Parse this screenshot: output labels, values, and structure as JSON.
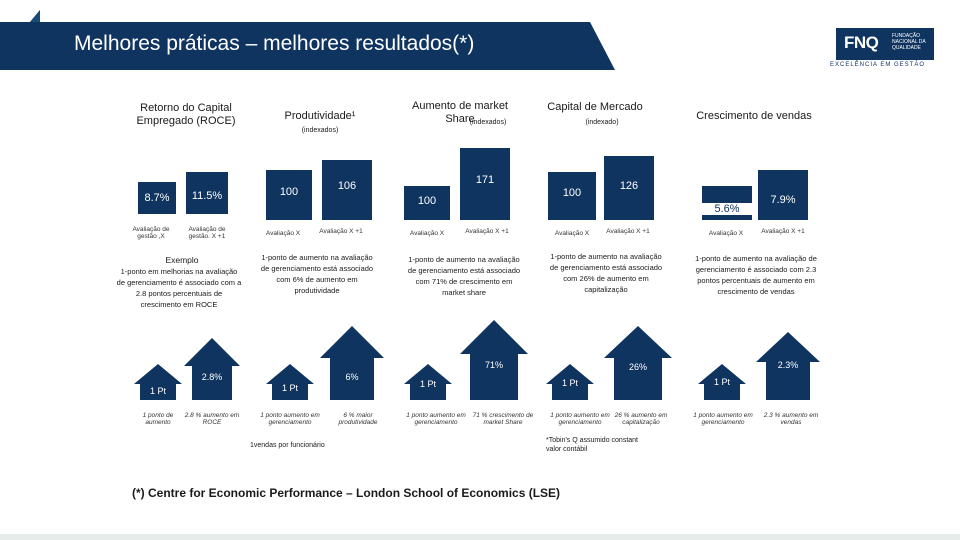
{
  "header": {
    "title": "Melhores práticas – melhores resultados(*)",
    "logo_text": "FNQ",
    "logo_sub": "FUNDAÇÃO NACIONAL DA QUALIDADE",
    "tagline": "EXCELÊNCIA EM GESTÃO"
  },
  "columns": [
    {
      "title": "Retorno do Capital Empregado (ROCE)",
      "subtitle": "",
      "bar1_value": "8.7%",
      "bar2_value": "11.5%",
      "axis1": "Avaliação de gestão ,X",
      "axis2": "Avaliação de gestão. X +1",
      "desc_heading": "Exemplo",
      "desc": "1-ponto em melhorias na avaliação de gerenciamento é associado com a 2.8 pontos percentuais de crescimento em ROCE",
      "arrow_left_label": "1 Pt",
      "arrow_right_label": "2.8%",
      "arrow_left_caption": "1 ponto de aumento",
      "arrow_right_caption": "2.8 % aumento em ROCE",
      "note": ""
    },
    {
      "title": "Produtividade¹",
      "subtitle": "(indexados)",
      "bar1_value": "100",
      "bar2_value": "106",
      "axis1": "Avaliação X",
      "axis2": "Avaliação X +1",
      "desc_heading": "",
      "desc": "1-ponto de aumento na avaliação de gerenciamento está associado com 6% de aumento em produtividade",
      "arrow_left_label": "1 Pt",
      "arrow_right_label": "6%",
      "arrow_left_caption": "1 ponto aumento em gerenciamento",
      "arrow_right_caption": "6 % maior produtividade",
      "note": "1vendas por funcionário"
    },
    {
      "title": "Aumento de market Share",
      "subtitle": "(indexados)",
      "bar1_value": "100",
      "bar2_value": "171",
      "axis1": "Avaliação X",
      "axis2": "Avaliação X +1",
      "desc_heading": "",
      "desc": "1-ponto de aumento na avaliação de gerenciamento está associado com 71% de crescimento em market share",
      "arrow_left_label": "1 Pt",
      "arrow_right_label": "71%",
      "arrow_left_caption": "1 ponto aumento em gerenciamento",
      "arrow_right_caption": "71 % crescimento de market Share",
      "note": ""
    },
    {
      "title": "Capital de Mercado",
      "subtitle": "(indexado)",
      "bar1_value": "100",
      "bar2_value": "126",
      "axis1": "Avaliação X",
      "axis2": "Avaliação X +1",
      "desc_heading": "",
      "desc": "1-ponto de aumento na avaliação de gerenciamento está associado com 26% de aumento em capitalização",
      "arrow_left_label": "1 Pt",
      "arrow_right_label": "26%",
      "arrow_left_caption": "1 ponto aumento em gerenciamento",
      "arrow_right_caption": "26 % aumento em capitalização",
      "note": "*Tobin's Q assumido constant valor contábil"
    },
    {
      "title": "Crescimento de vendas",
      "subtitle": "",
      "bar1_value": "5.6%",
      "bar2_value": "7.9%",
      "axis1": "Avaliação X",
      "axis2": "Avaliação X +1",
      "desc_heading": "",
      "desc": "1-ponto de aumento na avaliação de gerenciamento é associado com 2.3 pontos percentuais de aumento em crescimento de vendas",
      "arrow_left_label": "1 Pt",
      "arrow_right_label": "2.3%",
      "arrow_left_caption": "1 ponto aumento em gerenciamento",
      "arrow_right_caption": "2.3 % aumento em vendas",
      "note": ""
    }
  ],
  "footnote": "(*) Centre for Economic Performance – London School of Economics (LSE)",
  "colors": {
    "navy": "#0f3460",
    "accent": "#2b7a5a"
  }
}
